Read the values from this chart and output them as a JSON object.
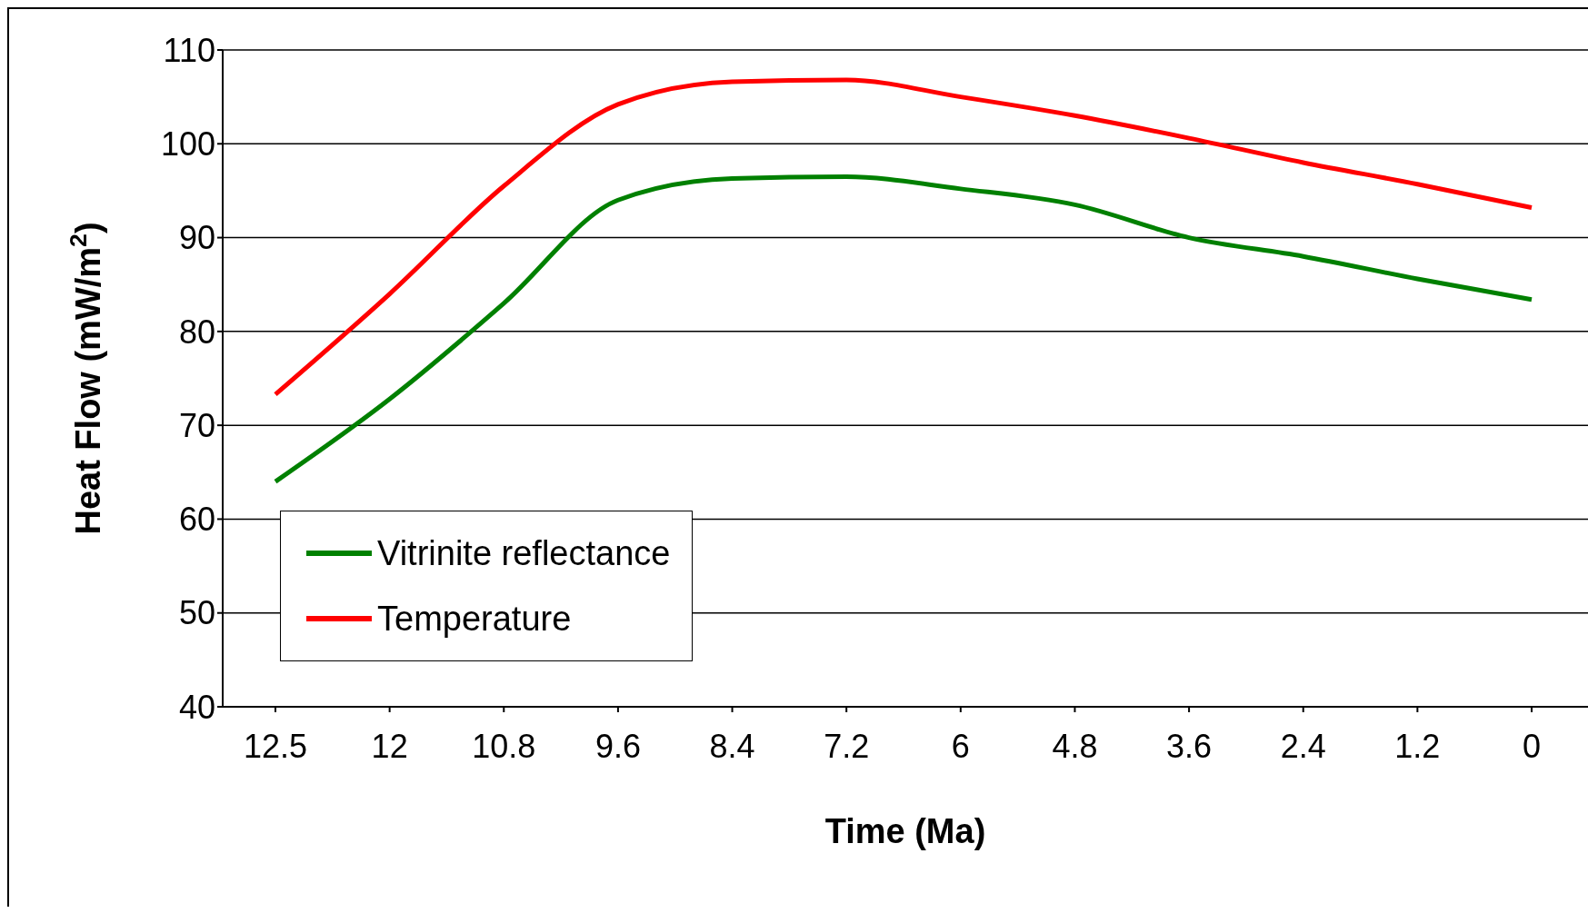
{
  "chart_data": {
    "type": "line",
    "xlabel": "Time (Ma)",
    "ylabel": "Heat Flow (mW/m$^{2}$)",
    "categories": [
      "12.5",
      "12",
      "10.8",
      "9.6",
      "8.4",
      "7.2",
      "6",
      "4.8",
      "3.6",
      "2.4",
      "1.2",
      "0"
    ],
    "series": [
      {
        "name": "Vitrinite reflectance",
        "color": "#008000",
        "values": [
          64,
          72.8,
          83,
          94,
          96.3,
          96.5,
          95.2,
          93.5,
          90,
          88,
          85.6,
          83.4
        ]
      },
      {
        "name": "Temperature",
        "color": "#ff0000",
        "values": [
          73.3,
          84,
          95.5,
          104.2,
          106.6,
          106.8,
          105,
          103,
          100.6,
          98,
          95.7,
          93.2
        ]
      }
    ],
    "ylim": [
      40,
      110
    ],
    "yticks": [
      40,
      50,
      60,
      70,
      80,
      90,
      100,
      110
    ],
    "grid": "y",
    "legend": "bottom left",
    "marker": "none",
    "line_style": "solid"
  }
}
